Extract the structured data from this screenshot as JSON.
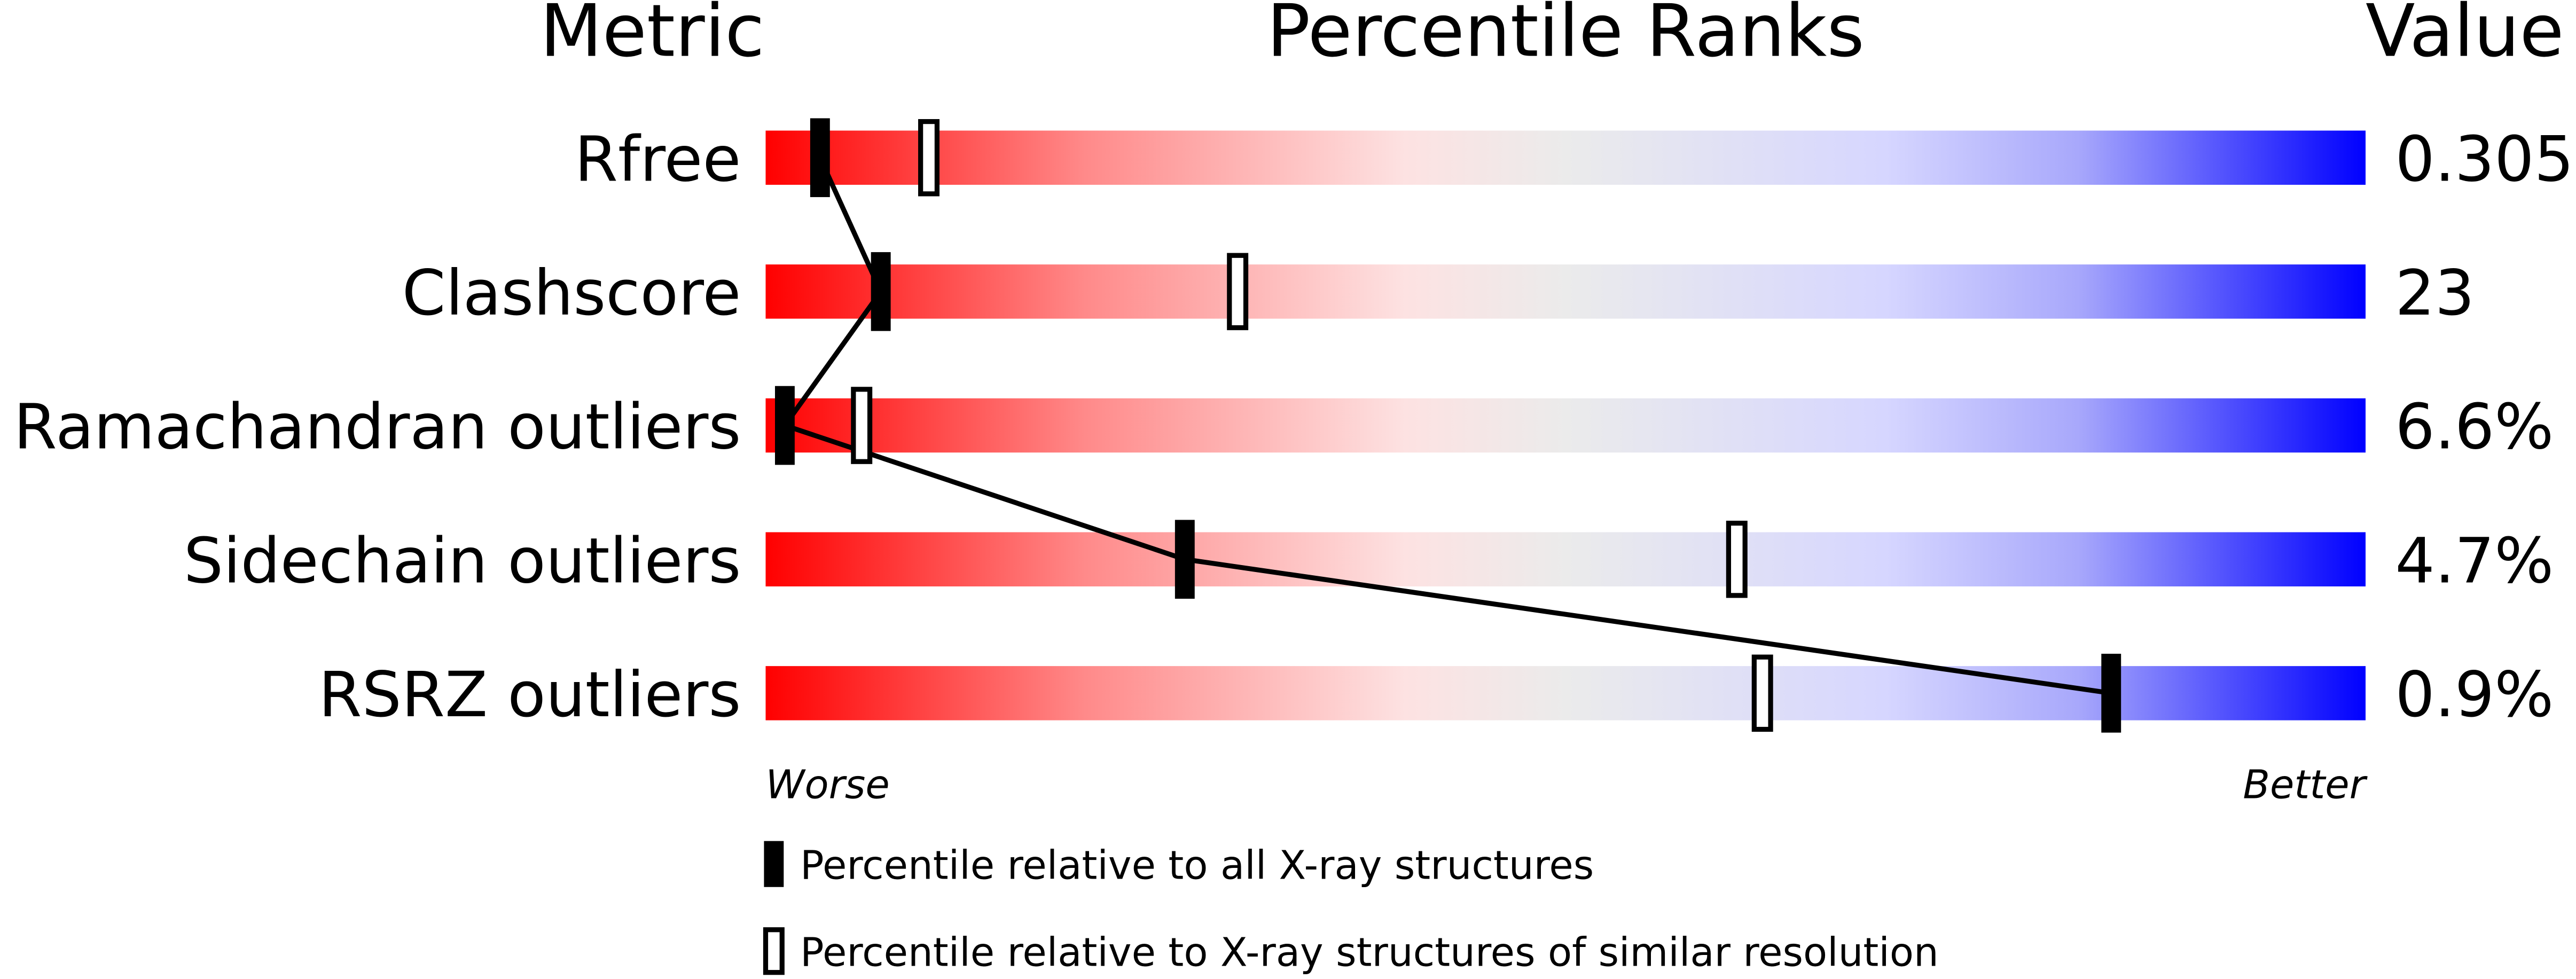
{
  "chart_data": {
    "type": "percentile-slider",
    "header": {
      "metric": "Metric",
      "ranks": "Percentile Ranks",
      "value": "Value"
    },
    "categories": [
      "Rfree",
      "Clashscore",
      "Ramachandran outliers",
      "Sidechain outliers",
      "RSRZ outliers"
    ],
    "value_texts": [
      "0.305",
      "23",
      "6.6%",
      "4.7%",
      "0.9%"
    ],
    "series": [
      {
        "name": "Percentile relative to all X-ray structures",
        "color": "#000000",
        "style": "filled",
        "values": [
          3.4,
          7.2,
          1.2,
          26.2,
          84.1
        ]
      },
      {
        "name": "Percentile relative to X-ray structures of similar resolution",
        "color": "#000000",
        "style": "open",
        "values": [
          10.2,
          29.5,
          6.0,
          60.7,
          62.3
        ]
      }
    ],
    "xlim": [
      0,
      100
    ],
    "axis_labels": {
      "low": "Worse",
      "high": "Better"
    }
  }
}
